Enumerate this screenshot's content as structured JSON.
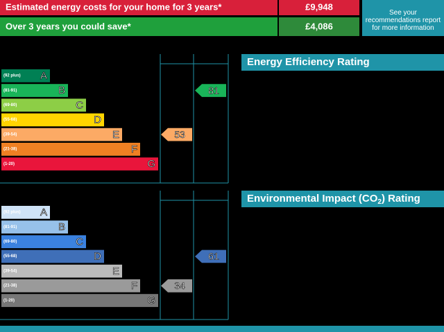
{
  "costs": {
    "rows": [
      {
        "label": "Estimated energy costs for your home for 3 years*",
        "value": "£9,948"
      },
      {
        "label": "Over 3 years you could save*",
        "value": "£4,086"
      }
    ],
    "note": "See your recommendations report for more information"
  },
  "ratings": [
    {
      "title": "Energy Efficiency Rating",
      "bands": [
        {
          "range": "(92 plus)",
          "letter": "A"
        },
        {
          "range": "(81-91)",
          "letter": "B"
        },
        {
          "range": "(69-80)",
          "letter": "C"
        },
        {
          "range": "(55-68)",
          "letter": "D"
        },
        {
          "range": "(39-54)",
          "letter": "E"
        },
        {
          "range": "(21-38)",
          "letter": "F"
        },
        {
          "range": "(1-20)",
          "letter": "G"
        }
      ],
      "colors": [
        "#008054",
        "#19b459",
        "#8dce46",
        "#ffd500",
        "#fcaa65",
        "#ef8023",
        "#e9153b"
      ],
      "current": 53,
      "potential": 81
    },
    {
      "title": "Environmental Impact (CO",
      "title_sub": "2",
      "title_end": ") Rating",
      "bands": [
        {
          "range": "(92 plus)",
          "letter": "A"
        },
        {
          "range": "(81-91)",
          "letter": "B"
        },
        {
          "range": "(69-80)",
          "letter": "C"
        },
        {
          "range": "(55-68)",
          "letter": "D"
        },
        {
          "range": "(39-54)",
          "letter": "E"
        },
        {
          "range": "(21-38)",
          "letter": "F"
        },
        {
          "range": "(1-20)",
          "letter": "G"
        }
      ],
      "colors": [
        "#cfe3f7",
        "#97c1ea",
        "#3b82e0",
        "#3f6fb8",
        "#bbbbbb",
        "#9a9a9a",
        "#777777"
      ],
      "current": 34,
      "potential": 61
    }
  ]
}
